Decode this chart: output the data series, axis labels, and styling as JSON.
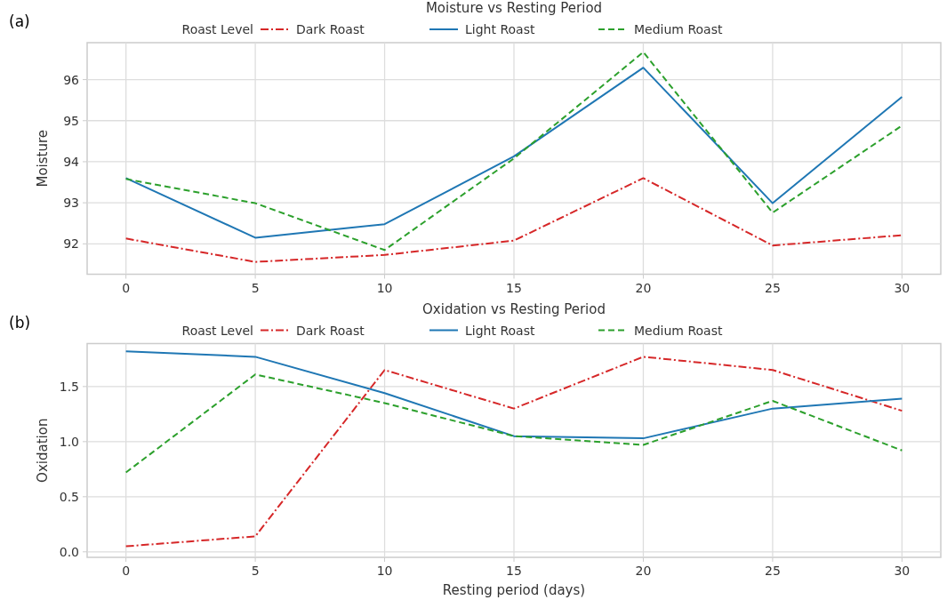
{
  "chart_data": [
    {
      "type": "line",
      "title": "Moisture vs Resting Period",
      "ylabel": "Moisture",
      "annotations": [
        "(a)"
      ],
      "legend_title": "Roast Level",
      "legend": "top",
      "grid": true,
      "x": [
        0,
        5,
        10,
        15,
        20,
        25,
        30
      ],
      "xlim": [
        -1.5,
        31.5
      ],
      "xticks": [
        0,
        5,
        10,
        15,
        20,
        25,
        30
      ],
      "ylim": [
        91.26,
        96.9
      ],
      "yticks": [
        92,
        93,
        94,
        95,
        96
      ],
      "series": [
        {
          "name": "Dark Roast",
          "color": "#d62728",
          "line_style": "dashdot",
          "values": [
            92.13,
            91.56,
            91.73,
            92.08,
            93.6,
            91.96,
            92.21
          ]
        },
        {
          "name": "Light Roast",
          "color": "#1f77b4",
          "line_style": "solid",
          "values": [
            93.6,
            92.15,
            92.48,
            94.13,
            96.29,
            92.99,
            95.58
          ]
        },
        {
          "name": "Medium Roast",
          "color": "#2ca02c",
          "line_style": "dashed",
          "values": [
            93.58,
            92.99,
            91.85,
            94.08,
            96.67,
            92.76,
            94.88
          ]
        }
      ]
    },
    {
      "type": "line",
      "title": "Oxidation vs Resting Period",
      "xlabel": "Resting period (days)",
      "ylabel": "Oxidation",
      "annotations": [
        "(b)"
      ],
      "legend_title": "Roast Level",
      "legend": "top",
      "grid": true,
      "x": [
        0,
        5,
        10,
        15,
        20,
        25,
        30
      ],
      "xlim": [
        -1.5,
        31.5
      ],
      "xticks": [
        0,
        5,
        10,
        15,
        20,
        25,
        30
      ],
      "ylim": [
        -0.05,
        1.89
      ],
      "yticks": [
        {
          "value": 0,
          "label": "0.0"
        },
        0.5,
        {
          "value": 1,
          "label": "1.0"
        },
        1.5
      ],
      "series": [
        {
          "name": "Dark Roast",
          "color": "#d62728",
          "line_style": "dashdot",
          "values": [
            0.05,
            0.14,
            1.65,
            1.3,
            1.77,
            1.65,
            1.28
          ]
        },
        {
          "name": "Light Roast",
          "color": "#1f77b4",
          "line_style": "solid",
          "values": [
            1.82,
            1.77,
            1.44,
            1.05,
            1.03,
            1.3,
            1.39
          ]
        },
        {
          "name": "Medium Roast",
          "color": "#2ca02c",
          "line_style": "dashed",
          "values": [
            0.72,
            1.61,
            1.35,
            1.05,
            0.97,
            1.37,
            0.92
          ]
        }
      ]
    }
  ]
}
